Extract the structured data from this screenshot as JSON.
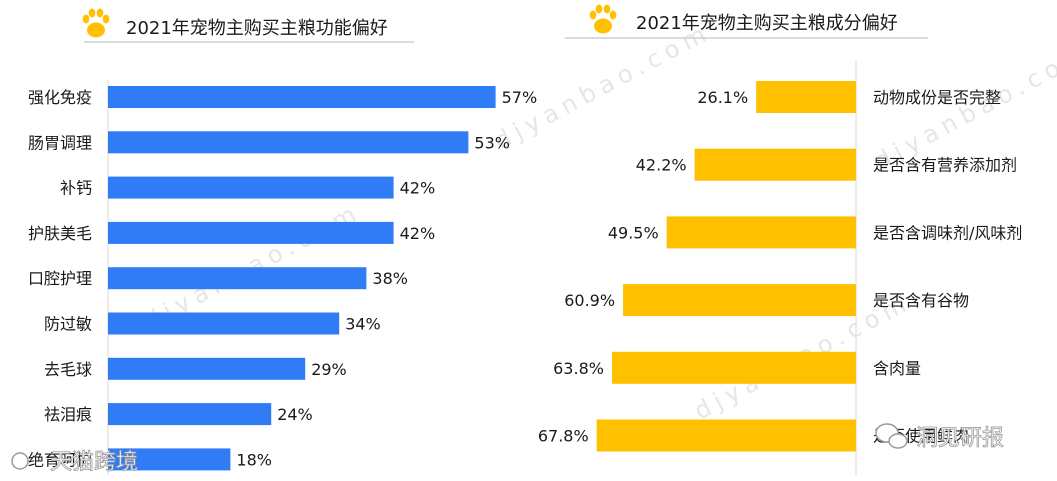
{
  "colors": {
    "left_bar": "#2f7cf6",
    "right_bar": "#ffc000",
    "paw": "#ffc000",
    "text": "#1a1a1a"
  },
  "chart_data": [
    {
      "type": "bar",
      "orientation": "horizontal",
      "title": "2021年宠物主购买主粮功能偏好",
      "categories": [
        "强化免疫",
        "肠胃调理",
        "补钙",
        "护肤美毛",
        "口腔护理",
        "防过敏",
        "去毛球",
        "祛泪痕",
        "绝育呵护"
      ],
      "values": [
        57,
        53,
        42,
        42,
        38,
        34,
        29,
        24,
        18
      ],
      "value_labels": [
        "57%",
        "53%",
        "42%",
        "42%",
        "38%",
        "34%",
        "29%",
        "24%",
        "18%"
      ],
      "unit": "%"
    },
    {
      "type": "bar",
      "orientation": "horizontal",
      "title": "2021年宠物主购买主粮成分偏好",
      "categories": [
        "动物成份是否完整",
        "是否含有营养添加剂",
        "是否含调味剂/风味剂",
        "是否含有谷物",
        "含肉量",
        "是否使用鲜肉"
      ],
      "values": [
        26.1,
        42.2,
        49.5,
        60.9,
        63.8,
        67.8
      ],
      "value_labels": [
        "26.1%",
        "42.2%",
        "49.5%",
        "60.9%",
        "63.8%",
        "67.8%"
      ],
      "unit": "%"
    }
  ],
  "watermarks": {
    "site": "djyanbao.com",
    "left_logo": "天猫跨境",
    "right_logo": "洞见研报"
  }
}
